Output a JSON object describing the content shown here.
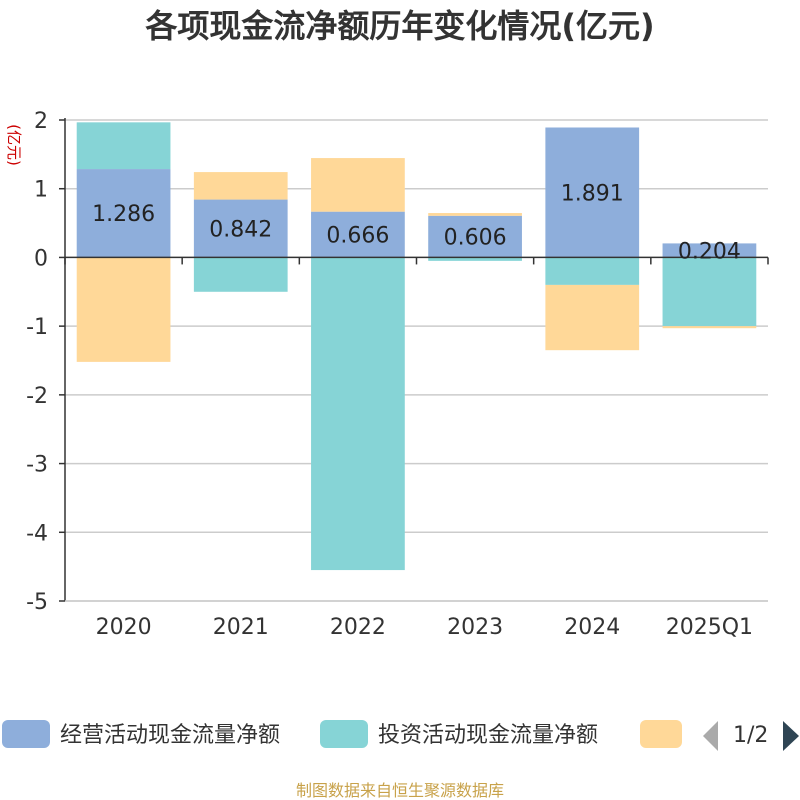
{
  "chart_data": {
    "type": "bar",
    "stacked": true,
    "title": "各项现金流净额历年变化情况(亿元)",
    "ylabel": "(亿元)",
    "ylim": [
      -5,
      2
    ],
    "yticks": [
      2,
      1,
      0,
      -1,
      -2,
      -3,
      -4,
      -5
    ],
    "grid": true,
    "categories": [
      "2020",
      "2021",
      "2022",
      "2023",
      "2024",
      "2025Q1"
    ],
    "series": [
      {
        "name": "经营活动现金流量净额",
        "color": "#8eaedb",
        "values": [
          1.286,
          0.842,
          0.666,
          0.606,
          1.891,
          0.204
        ],
        "labels": [
          "1.286",
          "0.842",
          "0.666",
          "0.606",
          "1.891",
          "0.204"
        ]
      },
      {
        "name": "投资活动现金流量净额",
        "color": "#86d4d6",
        "values": [
          0.68,
          -0.5,
          -4.55,
          -0.05,
          -0.4,
          -1.0
        ]
      },
      {
        "name": "",
        "color": "#ffd898",
        "values": [
          -1.52,
          0.4,
          0.78,
          0.04,
          -0.95,
          -0.03
        ]
      }
    ],
    "legend": {
      "position": "bottom",
      "page_indicator": "1/2"
    }
  },
  "footer": "制图数据来自恒生聚源数据库"
}
